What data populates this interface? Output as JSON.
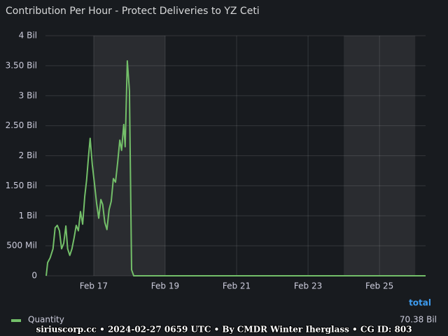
{
  "chart_data": {
    "type": "line",
    "title": "Contribution Per Hour - Protect Deliveries to YZ Ceti",
    "x": [
      15.67,
      15.71,
      15.78,
      15.86,
      15.92,
      15.98,
      16.04,
      16.1,
      16.16,
      16.22,
      16.27,
      16.33,
      16.39,
      16.45,
      16.51,
      16.57,
      16.63,
      16.69,
      16.75,
      16.8,
      16.86,
      16.9,
      16.96,
      17.02,
      17.08,
      17.14,
      17.2,
      17.25,
      17.31,
      17.37,
      17.43,
      17.49,
      17.55,
      17.61,
      17.67,
      17.73,
      17.78,
      17.84,
      17.88,
      17.94,
      18.0,
      18.06,
      18.12,
      26.29
    ],
    "series": [
      {
        "name": "Quantity",
        "color": "#73bf69",
        "values": [
          0,
          0.22,
          0.3,
          0.45,
          0.8,
          0.84,
          0.75,
          0.45,
          0.54,
          0.83,
          0.45,
          0.34,
          0.45,
          0.63,
          0.84,
          0.75,
          1.07,
          0.86,
          1.33,
          1.59,
          2.03,
          2.29,
          1.85,
          1.54,
          1.21,
          0.96,
          1.27,
          1.19,
          0.89,
          0.77,
          1.1,
          1.24,
          1.62,
          1.56,
          1.89,
          2.26,
          2.09,
          2.52,
          2.15,
          3.58,
          3.08,
          0.1,
          0,
          0
        ]
      }
    ],
    "xlim": [
      15.65,
      26.29
    ],
    "xticks": [
      {
        "value": 17,
        "label": "Feb 17"
      },
      {
        "value": 19,
        "label": "Feb 19"
      },
      {
        "value": 21,
        "label": "Feb 21"
      },
      {
        "value": 23,
        "label": "Feb 23"
      },
      {
        "value": 25,
        "label": "Feb 25"
      }
    ],
    "ylim": [
      0,
      4
    ],
    "yticks": [
      0,
      {
        "value": 0.5,
        "label": "500 Mil"
      },
      {
        "value": 1,
        "label": "1 Bil"
      },
      {
        "value": 1.5,
        "label": "1.50 Bil"
      },
      {
        "value": 2,
        "label": "2 Bil"
      },
      {
        "value": 2.5,
        "label": "2.50 Bil"
      },
      {
        "value": 3,
        "label": "3 Bil"
      },
      {
        "value": 3.5,
        "label": "3.50 Bil"
      },
      {
        "value": 4,
        "label": "4 Bil"
      }
    ],
    "shaded_ranges": [
      [
        17,
        19
      ],
      [
        24,
        26
      ]
    ],
    "grid": true,
    "legend_header": "total",
    "legend_totals": [
      "70.38 Bil"
    ],
    "footer": "siriuscorp.cc • 2024-02-27 0659 UTC • By CMDR Winter Iherglass • CG ID: 803"
  }
}
